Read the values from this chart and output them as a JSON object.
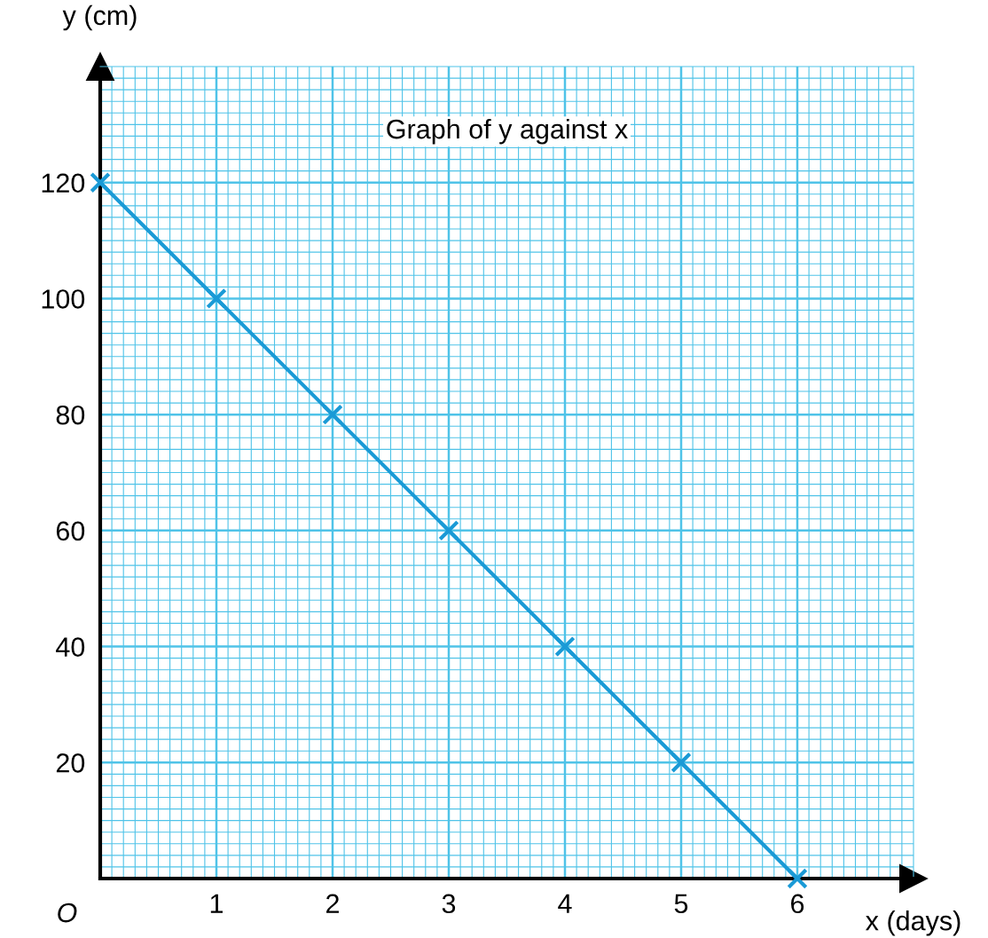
{
  "chart_data": {
    "type": "line",
    "title": "Graph of y against x",
    "xlabel": "x (days)",
    "ylabel": "y (cm)",
    "annotations": [
      "O"
    ],
    "x": [
      0,
      1,
      2,
      3,
      4,
      5,
      6
    ],
    "series": [
      {
        "color": "#1a9ad6",
        "values": [
          120,
          100,
          80,
          60,
          40,
          20,
          0
        ]
      }
    ],
    "xlim": [
      0,
      7
    ],
    "ylim": [
      0,
      140
    ],
    "xticks": [
      {
        "value": 0.1,
        "label": null
      },
      {
        "value": 0.2,
        "label": null
      },
      {
        "value": 0.3,
        "label": null
      },
      {
        "value": 0.4,
        "label": null
      },
      {
        "value": 0.5,
        "label": null
      },
      {
        "value": 0.6,
        "label": null
      },
      {
        "value": 0.7,
        "label": null
      },
      {
        "value": 0.8,
        "label": null
      },
      {
        "value": 0.9,
        "label": null
      },
      1,
      {
        "value": 1.1,
        "label": null
      },
      {
        "value": 1.2,
        "label": null
      },
      {
        "value": 1.3,
        "label": null
      },
      {
        "value": 1.4,
        "label": null
      },
      {
        "value": 1.5,
        "label": null
      },
      {
        "value": 1.6,
        "label": null
      },
      {
        "value": 1.7,
        "label": null
      },
      {
        "value": 1.8,
        "label": null
      },
      {
        "value": 1.9,
        "label": null
      },
      2,
      {
        "value": 2.1,
        "label": null
      },
      {
        "value": 2.2,
        "label": null
      },
      {
        "value": 2.3,
        "label": null
      },
      {
        "value": 2.4,
        "label": null
      },
      {
        "value": 2.5,
        "label": null
      },
      {
        "value": 2.6,
        "label": null
      },
      {
        "value": 2.7,
        "label": null
      },
      {
        "value": 2.8,
        "label": null
      },
      {
        "value": 2.9,
        "label": null
      },
      3,
      {
        "value": 3.1,
        "label": null
      },
      {
        "value": 3.2,
        "label": null
      },
      {
        "value": 3.3,
        "label": null
      },
      {
        "value": 3.4,
        "label": null
      },
      {
        "value": 3.5,
        "label": null
      },
      {
        "value": 3.6,
        "label": null
      },
      {
        "value": 3.7,
        "label": null
      },
      {
        "value": 3.8,
        "label": null
      },
      {
        "value": 3.9,
        "label": null
      },
      4,
      {
        "value": 4.1,
        "label": null
      },
      {
        "value": 4.2,
        "label": null
      },
      {
        "value": 4.3,
        "label": null
      },
      {
        "value": 4.4,
        "label": null
      },
      {
        "value": 4.5,
        "label": null
      },
      {
        "value": 4.6,
        "label": null
      },
      {
        "value": 4.7,
        "label": null
      },
      {
        "value": 4.8,
        "label": null
      },
      {
        "value": 4.9,
        "label": null
      },
      5,
      {
        "value": 5.1,
        "label": null
      },
      {
        "value": 5.2,
        "label": null
      },
      {
        "value": 5.3,
        "label": null
      },
      {
        "value": 5.4,
        "label": null
      },
      {
        "value": 5.5,
        "label": null
      },
      {
        "value": 5.6,
        "label": null
      },
      {
        "value": 5.7,
        "label": null
      },
      {
        "value": 5.8,
        "label": null
      },
      {
        "value": 5.9,
        "label": null
      },
      6,
      {
        "value": 6.1,
        "label": null
      },
      {
        "value": 6.2,
        "label": null
      },
      {
        "value": 6.3,
        "label": null
      },
      {
        "value": 6.4,
        "label": null
      },
      {
        "value": 6.5,
        "label": null
      },
      {
        "value": 6.6,
        "label": null
      },
      {
        "value": 6.7,
        "label": null
      },
      {
        "value": 6.8,
        "label": null
      },
      {
        "value": 6.9,
        "label": null
      }
    ],
    "yticks": [
      {
        "value": 2,
        "label": null
      },
      {
        "value": 4,
        "label": null
      },
      {
        "value": 6,
        "label": null
      },
      {
        "value": 8,
        "label": null
      },
      {
        "value": 10,
        "label": null
      },
      {
        "value": 12,
        "label": null
      },
      {
        "value": 14,
        "label": null
      },
      {
        "value": 16,
        "label": null
      },
      {
        "value": 18,
        "label": null
      },
      20,
      {
        "value": 22,
        "label": null
      },
      {
        "value": 24,
        "label": null
      },
      {
        "value": 26,
        "label": null
      },
      {
        "value": 28,
        "label": null
      },
      {
        "value": 30,
        "label": null
      },
      {
        "value": 32,
        "label": null
      },
      {
        "value": 34,
        "label": null
      },
      {
        "value": 36,
        "label": null
      },
      {
        "value": 38,
        "label": null
      },
      40,
      {
        "value": 42,
        "label": null
      },
      {
        "value": 44,
        "label": null
      },
      {
        "value": 46,
        "label": null
      },
      {
        "value": 48,
        "label": null
      },
      {
        "value": 50,
        "label": null
      },
      {
        "value": 52,
        "label": null
      },
      {
        "value": 54,
        "label": null
      },
      {
        "value": 56,
        "label": null
      },
      {
        "value": 58,
        "label": null
      },
      60,
      {
        "value": 62,
        "label": null
      },
      {
        "value": 64,
        "label": null
      },
      {
        "value": 66,
        "label": null
      },
      {
        "value": 68,
        "label": null
      },
      {
        "value": 70,
        "label": null
      },
      {
        "value": 72,
        "label": null
      },
      {
        "value": 74,
        "label": null
      },
      {
        "value": 76,
        "label": null
      },
      {
        "value": 78,
        "label": null
      },
      80,
      {
        "value": 82,
        "label": null
      },
      {
        "value": 84,
        "label": null
      },
      {
        "value": 86,
        "label": null
      },
      {
        "value": 88,
        "label": null
      },
      {
        "value": 90,
        "label": null
      },
      {
        "value": 92,
        "label": null
      },
      {
        "value": 94,
        "label": null
      },
      {
        "value": 96,
        "label": null
      },
      {
        "value": 98,
        "label": null
      },
      100,
      {
        "value": 102,
        "label": null
      },
      {
        "value": 104,
        "label": null
      },
      {
        "value": 106,
        "label": null
      },
      {
        "value": 108,
        "label": null
      },
      {
        "value": 110,
        "label": null
      },
      {
        "value": 112,
        "label": null
      },
      {
        "value": 114,
        "label": null
      },
      {
        "value": 116,
        "label": null
      },
      {
        "value": 118,
        "label": null
      },
      120,
      {
        "value": 122,
        "label": null
      },
      {
        "value": 124,
        "label": null
      },
      {
        "value": 126,
        "label": null
      },
      {
        "value": 128,
        "label": null
      },
      {
        "value": 130,
        "label": null
      },
      {
        "value": 132,
        "label": null
      },
      {
        "value": 134,
        "label": null
      },
      {
        "value": 136,
        "label": null
      },
      {
        "value": 138,
        "label": null
      }
    ],
    "grid": true,
    "marker": "cross",
    "line_style": "solid"
  }
}
